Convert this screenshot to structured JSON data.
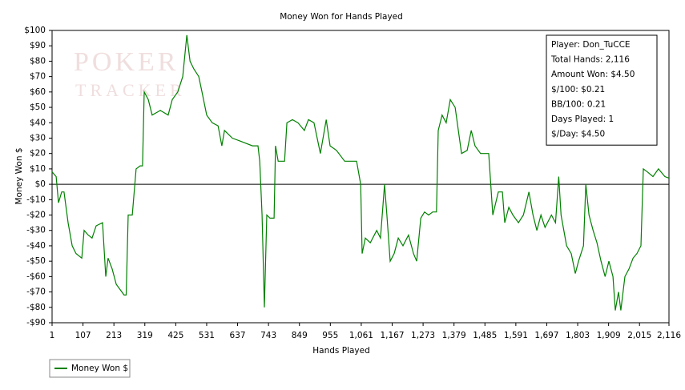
{
  "chart_data": {
    "type": "line",
    "title": "Money Won for Hands Played",
    "x_label": "Hands Played",
    "y_label": "Money Won $",
    "watermark": [
      "POKER",
      "TRACKER"
    ],
    "info_box": [
      "Player: Don_TuCCE",
      "Total Hands: 2,116",
      "Amount Won: $4.50",
      "$/100: $0.21",
      "BB/100: 0.21",
      "Days Played: 1",
      "$/Day: $4.50"
    ],
    "legend": "bottom-left",
    "grid": false,
    "x": [
      1,
      15,
      23,
      34,
      42,
      56,
      70,
      83,
      103,
      111,
      125,
      138,
      152,
      174,
      185,
      193,
      207,
      221,
      248,
      255,
      262,
      276,
      289,
      303,
      311,
      317,
      331,
      344,
      372,
      399,
      413,
      432,
      449,
      463,
      474,
      487,
      504,
      515,
      531,
      550,
      570,
      583,
      592,
      619,
      647,
      688,
      707,
      713,
      721,
      729,
      737,
      748,
      762,
      767,
      776,
      784,
      798,
      806,
      825,
      844,
      866,
      880,
      899,
      921,
      941,
      954,
      976,
      1004,
      1023,
      1045,
      1059,
      1064,
      1075,
      1092,
      1114,
      1127,
      1141,
      1149,
      1160,
      1174,
      1188,
      1204,
      1223,
      1240,
      1251,
      1265,
      1278,
      1292,
      1306,
      1319,
      1325,
      1338,
      1352,
      1366,
      1383,
      1394,
      1405,
      1424,
      1438,
      1451,
      1470,
      1498,
      1512,
      1531,
      1545,
      1553,
      1567,
      1581,
      1600,
      1617,
      1636,
      1650,
      1663,
      1677,
      1691,
      1713,
      1727,
      1738,
      1746,
      1765,
      1781,
      1795,
      1806,
      1823,
      1831,
      1842,
      1856,
      1869,
      1883,
      1897,
      1910,
      1924,
      1932,
      1943,
      1951,
      1965,
      1979,
      1993,
      2006,
      2020,
      2028,
      2042,
      2061,
      2080,
      2102,
      2116
    ],
    "series": [
      {
        "name": "Money Won $",
        "color": "#008000",
        "values": [
          8,
          5,
          -12,
          -5,
          -5,
          -25,
          -40,
          -45,
          -48,
          -30,
          -33,
          -35,
          -27,
          -25,
          -60,
          -48,
          -55,
          -65,
          -72,
          -72,
          -20,
          -20,
          10,
          12,
          12,
          60,
          55,
          45,
          48,
          45,
          55,
          60,
          70,
          97,
          80,
          75,
          70,
          60,
          45,
          40,
          38,
          25,
          35,
          30,
          28,
          25,
          25,
          15,
          -20,
          -80,
          -20,
          -22,
          -22,
          25,
          15,
          15,
          15,
          40,
          42,
          40,
          35,
          42,
          40,
          20,
          42,
          25,
          22,
          15,
          15,
          15,
          0,
          -45,
          -35,
          -38,
          -30,
          -35,
          0,
          -20,
          -50,
          -45,
          -35,
          -40,
          -33,
          -45,
          -50,
          -22,
          -18,
          -20,
          -18,
          -18,
          35,
          45,
          40,
          55,
          50,
          35,
          20,
          22,
          35,
          25,
          20,
          20,
          -20,
          -5,
          -5,
          -25,
          -15,
          -20,
          -25,
          -20,
          -5,
          -20,
          -30,
          -20,
          -28,
          -20,
          -25,
          5,
          -20,
          -40,
          -45,
          -58,
          -50,
          -40,
          0,
          -20,
          -30,
          -38,
          -50,
          -60,
          -50,
          -60,
          -82,
          -70,
          -82,
          -60,
          -55,
          -48,
          -45,
          -40,
          10,
          8,
          5,
          10,
          5,
          4
        ]
      }
    ],
    "xlim": [
      1,
      2116
    ],
    "ylim": [
      -90,
      100
    ],
    "xticks": [
      1,
      107,
      213,
      319,
      425,
      531,
      637,
      743,
      849,
      955,
      {
        "value": 1061,
        "label": "1,061"
      },
      {
        "value": 1167,
        "label": "1,167"
      },
      {
        "value": 1273,
        "label": "1,273"
      },
      {
        "value": 1379,
        "label": "1,379"
      },
      {
        "value": 1485,
        "label": "1,485"
      },
      {
        "value": 1591,
        "label": "1,591"
      },
      {
        "value": 1697,
        "label": "1,697"
      },
      {
        "value": 1803,
        "label": "1,803"
      },
      {
        "value": 1909,
        "label": "1,909"
      },
      {
        "value": 2015,
        "label": "2,015"
      },
      {
        "value": 2116,
        "label": "2,116"
      }
    ],
    "yticks": [
      {
        "value": 100,
        "label": "$100"
      },
      {
        "value": 90,
        "label": "$90"
      },
      {
        "value": 80,
        "label": "$80"
      },
      {
        "value": 70,
        "label": "$70"
      },
      {
        "value": 60,
        "label": "$60"
      },
      {
        "value": 50,
        "label": "$50"
      },
      {
        "value": 40,
        "label": "$40"
      },
      {
        "value": 30,
        "label": "$30"
      },
      {
        "value": 20,
        "label": "$20"
      },
      {
        "value": 10,
        "label": "$10"
      },
      {
        "value": 0,
        "label": "$0"
      },
      {
        "value": -10,
        "label": "-$10"
      },
      {
        "value": -20,
        "label": "-$20"
      },
      {
        "value": -30,
        "label": "-$30"
      },
      {
        "value": -40,
        "label": "-$40"
      },
      {
        "value": -50,
        "label": "-$50"
      },
      {
        "value": -60,
        "label": "-$60"
      },
      {
        "value": -70,
        "label": "-$70"
      },
      {
        "value": -80,
        "label": "-$80"
      },
      {
        "value": -90,
        "label": "-$90"
      }
    ]
  }
}
